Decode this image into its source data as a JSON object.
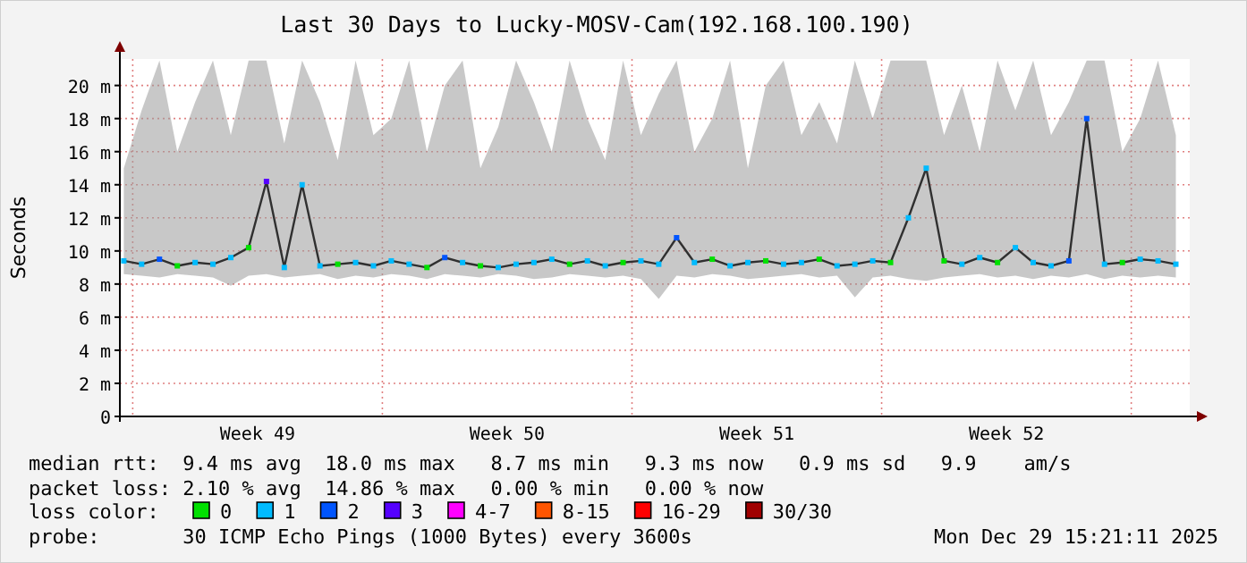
{
  "chart_data": {
    "type": "line",
    "title": "Last 30 Days to Lucky-MOSV-Cam(192.168.100.190)",
    "ylabel": "Seconds",
    "legend_title": "loss color:",
    "legend": "bottom",
    "grid": true,
    "marker": "square",
    "xlim": [
      "2025-11-29T15:21",
      "2025-12-29T15:21"
    ],
    "xticks": [
      {
        "value": "2025-12-03T12:00",
        "label": "Week 49"
      },
      {
        "value": "2025-12-10T12:00",
        "label": "Week 50"
      },
      {
        "value": "2025-12-17T12:00",
        "label": "Week 51"
      },
      {
        "value": "2025-12-24T12:00",
        "label": "Week 52"
      }
    ],
    "ylim": [
      0,
      21.6
    ],
    "yticks": [
      0,
      {
        "value": 2,
        "label": "2 m"
      },
      {
        "value": 4,
        "label": "4 m"
      },
      {
        "value": 6,
        "label": "6 m"
      },
      {
        "value": 8,
        "label": "8 m"
      },
      {
        "value": 10,
        "label": "10 m"
      },
      {
        "value": 12,
        "label": "12 m"
      },
      {
        "value": 14,
        "label": "14 m"
      },
      {
        "value": 16,
        "label": "16 m"
      },
      {
        "value": 18,
        "label": "18 m"
      },
      {
        "value": 20,
        "label": "20 m"
      }
    ],
    "x": [
      "2025-11-29T18:00",
      "2025-11-30T06:00",
      "2025-11-30T18:00",
      "2025-12-01T06:00",
      "2025-12-01T18:00",
      "2025-12-02T06:00",
      "2025-12-02T18:00",
      "2025-12-03T06:00",
      "2025-12-03T18:00",
      "2025-12-04T06:00",
      "2025-12-04T18:00",
      "2025-12-05T06:00",
      "2025-12-05T18:00",
      "2025-12-06T06:00",
      "2025-12-06T18:00",
      "2025-12-07T06:00",
      "2025-12-07T18:00",
      "2025-12-08T06:00",
      "2025-12-08T18:00",
      "2025-12-09T06:00",
      "2025-12-09T18:00",
      "2025-12-10T06:00",
      "2025-12-10T18:00",
      "2025-12-11T06:00",
      "2025-12-11T18:00",
      "2025-12-12T06:00",
      "2025-12-12T18:00",
      "2025-12-13T06:00",
      "2025-12-13T18:00",
      "2025-12-14T06:00",
      "2025-12-14T18:00",
      "2025-12-15T06:00",
      "2025-12-15T18:00",
      "2025-12-16T06:00",
      "2025-12-16T18:00",
      "2025-12-17T06:00",
      "2025-12-17T18:00",
      "2025-12-18T06:00",
      "2025-12-18T18:00",
      "2025-12-19T06:00",
      "2025-12-19T18:00",
      "2025-12-20T06:00",
      "2025-12-20T18:00",
      "2025-12-21T06:00",
      "2025-12-21T18:00",
      "2025-12-22T06:00",
      "2025-12-22T18:00",
      "2025-12-23T06:00",
      "2025-12-23T18:00",
      "2025-12-24T06:00",
      "2025-12-24T18:00",
      "2025-12-25T06:00",
      "2025-12-25T18:00",
      "2025-12-26T06:00",
      "2025-12-26T18:00",
      "2025-12-27T06:00",
      "2025-12-27T18:00",
      "2025-12-28T06:00",
      "2025-12-28T18:00",
      "2025-12-29T06:00"
    ],
    "series": [
      {
        "marker": "none",
        "color": "#303030",
        "values": [
          9.4,
          9.2,
          9.5,
          9.1,
          9.3,
          9.2,
          9.6,
          10.2,
          14.2,
          9.0,
          14.0,
          9.1,
          9.2,
          9.3,
          9.1,
          9.4,
          9.2,
          9.0,
          9.6,
          9.3,
          9.1,
          9.0,
          9.2,
          9.3,
          9.5,
          9.2,
          9.4,
          9.1,
          9.3,
          9.4,
          9.2,
          10.8,
          9.3,
          9.5,
          9.1,
          9.3,
          9.4,
          9.2,
          9.3,
          9.5,
          9.1,
          9.2,
          9.4,
          9.3,
          12.0,
          15.0,
          9.4,
          9.2,
          9.6,
          9.3,
          10.2,
          9.3,
          9.1,
          9.4,
          18.0,
          9.2,
          9.3,
          9.5,
          9.4,
          9.2
        ],
        "lower": [
          8.6,
          8.5,
          8.4,
          8.6,
          8.5,
          8.4,
          7.9,
          8.5,
          8.6,
          8.4,
          8.5,
          8.6,
          8.3,
          8.5,
          8.4,
          8.6,
          8.5,
          8.3,
          8.6,
          8.5,
          8.4,
          8.6,
          8.5,
          8.3,
          8.4,
          8.6,
          8.5,
          8.4,
          8.5,
          8.3,
          7.1,
          8.5,
          8.4,
          8.6,
          8.5,
          8.3,
          8.4,
          8.5,
          8.6,
          8.4,
          8.5,
          7.2,
          8.4,
          8.5,
          8.3,
          8.2,
          8.4,
          8.5,
          8.6,
          8.4,
          8.5,
          8.3,
          8.5,
          8.4,
          8.6,
          8.3,
          8.5,
          8.4,
          8.5,
          8.4
        ],
        "upper": [
          15,
          18.5,
          21.5,
          16,
          19,
          21.5,
          17,
          21.5,
          21.5,
          16.5,
          21.5,
          19,
          15.5,
          21.5,
          17,
          18,
          21.5,
          16,
          20,
          21.5,
          15,
          17.5,
          21.5,
          19,
          16,
          21.5,
          18,
          15.5,
          21.5,
          17,
          19.5,
          21.5,
          16,
          18,
          21.5,
          15,
          20,
          21.5,
          17,
          19,
          16.5,
          21.5,
          18,
          21.5,
          21.5,
          21.5,
          17,
          20,
          16,
          21.5,
          18.5,
          21.5,
          17,
          19,
          21.5,
          21.5,
          16,
          18,
          21.5,
          17
        ]
      },
      {
        "type": "scatter",
        "name": "0",
        "color": "#00e000",
        "x": [
          "2025-12-01T06:00",
          "2025-12-03T06:00",
          "2025-12-05T18:00",
          "2025-12-08T06:00",
          "2025-12-09T18:00",
          "2025-12-12T06:00",
          "2025-12-13T18:00",
          "2025-12-16T06:00",
          "2025-12-17T18:00",
          "2025-12-19T06:00",
          "2025-12-21T06:00",
          "2025-12-22T18:00",
          "2025-12-24T06:00",
          "2025-12-27T18:00"
        ],
        "values": [
          9.1,
          10.2,
          9.2,
          9.0,
          9.1,
          9.2,
          9.3,
          9.5,
          9.4,
          9.5,
          9.3,
          9.4,
          9.3,
          9.3
        ]
      },
      {
        "type": "scatter",
        "name": "1",
        "color": "#00bbff",
        "x": [
          "2025-11-29T18:00",
          "2025-11-30T06:00",
          "2025-12-01T18:00",
          "2025-12-02T06:00",
          "2025-12-02T18:00",
          "2025-12-04T06:00",
          "2025-12-04T18:00",
          "2025-12-05T06:00",
          "2025-12-06T06:00",
          "2025-12-06T18:00",
          "2025-12-07T06:00",
          "2025-12-07T18:00",
          "2025-12-09T06:00",
          "2025-12-10T06:00",
          "2025-12-10T18:00",
          "2025-12-11T06:00",
          "2025-12-11T18:00",
          "2025-12-12T18:00",
          "2025-12-13T06:00",
          "2025-12-14T06:00",
          "2025-12-14T18:00",
          "2025-12-15T18:00",
          "2025-12-16T18:00",
          "2025-12-17T06:00",
          "2025-12-18T06:00",
          "2025-12-18T18:00",
          "2025-12-19T18:00",
          "2025-12-20T06:00",
          "2025-12-20T18:00",
          "2025-12-21T18:00",
          "2025-12-22T06:00",
          "2025-12-23T06:00",
          "2025-12-23T18:00",
          "2025-12-24T18:00",
          "2025-12-25T06:00",
          "2025-12-25T18:00",
          "2025-12-27T06:00",
          "2025-12-28T06:00",
          "2025-12-28T18:00",
          "2025-12-29T06:00"
        ],
        "values": [
          9.4,
          9.2,
          9.3,
          9.2,
          9.6,
          9.0,
          14.0,
          9.1,
          9.3,
          9.1,
          9.4,
          9.2,
          9.3,
          9.0,
          9.2,
          9.3,
          9.5,
          9.4,
          9.1,
          9.4,
          9.2,
          9.3,
          9.1,
          9.3,
          9.2,
          9.3,
          9.1,
          9.2,
          9.4,
          12.0,
          15.0,
          9.2,
          9.6,
          10.2,
          9.3,
          9.1,
          9.2,
          9.5,
          9.4,
          9.2
        ]
      },
      {
        "type": "scatter",
        "name": "2",
        "color": "#0055ff",
        "x": [
          "2025-11-30T18:00",
          "2025-12-08T18:00",
          "2025-12-15T06:00",
          "2025-12-26T06:00",
          "2025-12-26T18:00"
        ],
        "values": [
          9.5,
          9.6,
          10.8,
          9.4,
          18.0
        ]
      },
      {
        "type": "scatter",
        "name": "3",
        "color": "#5500ff",
        "x": [
          "2025-12-03T18:00"
        ],
        "values": [
          14.2
        ]
      },
      {
        "type": "scatter",
        "name": "4-7",
        "color": "#ff00ff",
        "values": [
          null,
          null,
          null,
          null,
          null,
          null,
          null,
          null,
          null,
          null,
          null,
          null,
          null,
          null,
          null,
          null,
          null,
          null,
          null,
          null,
          null,
          null,
          null,
          null,
          null,
          null,
          null,
          null,
          null,
          null,
          null,
          null,
          null,
          null,
          null,
          null,
          null,
          null,
          null,
          null,
          null,
          null,
          null,
          null,
          null,
          null,
          null,
          null,
          null,
          null,
          null,
          null,
          null,
          null,
          null,
          null,
          null,
          null,
          null,
          null
        ]
      },
      {
        "type": "scatter",
        "name": "8-15",
        "color": "#ff5500",
        "values": [
          null,
          null,
          null,
          null,
          null,
          null,
          null,
          null,
          null,
          null,
          null,
          null,
          null,
          null,
          null,
          null,
          null,
          null,
          null,
          null,
          null,
          null,
          null,
          null,
          null,
          null,
          null,
          null,
          null,
          null,
          null,
          null,
          null,
          null,
          null,
          null,
          null,
          null,
          null,
          null,
          null,
          null,
          null,
          null,
          null,
          null,
          null,
          null,
          null,
          null,
          null,
          null,
          null,
          null,
          null,
          null,
          null,
          null,
          null,
          null
        ]
      },
      {
        "type": "scatter",
        "name": "16-29",
        "color": "#ff0000",
        "values": [
          null,
          null,
          null,
          null,
          null,
          null,
          null,
          null,
          null,
          null,
          null,
          null,
          null,
          null,
          null,
          null,
          null,
          null,
          null,
          null,
          null,
          null,
          null,
          null,
          null,
          null,
          null,
          null,
          null,
          null,
          null,
          null,
          null,
          null,
          null,
          null,
          null,
          null,
          null,
          null,
          null,
          null,
          null,
          null,
          null,
          null,
          null,
          null,
          null,
          null,
          null,
          null,
          null,
          null,
          null,
          null,
          null,
          null,
          null,
          null
        ]
      },
      {
        "type": "scatter",
        "name": "30/30",
        "color": "#a00000",
        "values": [
          null,
          null,
          null,
          null,
          null,
          null,
          null,
          null,
          null,
          null,
          null,
          null,
          null,
          null,
          null,
          null,
          null,
          null,
          null,
          null,
          null,
          null,
          null,
          null,
          null,
          null,
          null,
          null,
          null,
          null,
          null,
          null,
          null,
          null,
          null,
          null,
          null,
          null,
          null,
          null,
          null,
          null,
          null,
          null,
          null,
          null,
          null,
          null,
          null,
          null,
          null,
          null,
          null,
          null,
          null,
          null,
          null,
          null,
          null,
          null
        ]
      }
    ],
    "annotations": [
      "median rtt:  9.4 ms avg  18.0 ms max   8.7 ms min   9.3 ms now   0.9 ms sd   9.9    am/s",
      "packet loss: 2.10 % avg  14.86 % max   0.00 % min   0.00 % now",
      "probe:       30 ICMP Echo Pings (1000 Bytes) every 3600s",
      "Mon Dec 29 15:21:11 2025"
    ]
  }
}
